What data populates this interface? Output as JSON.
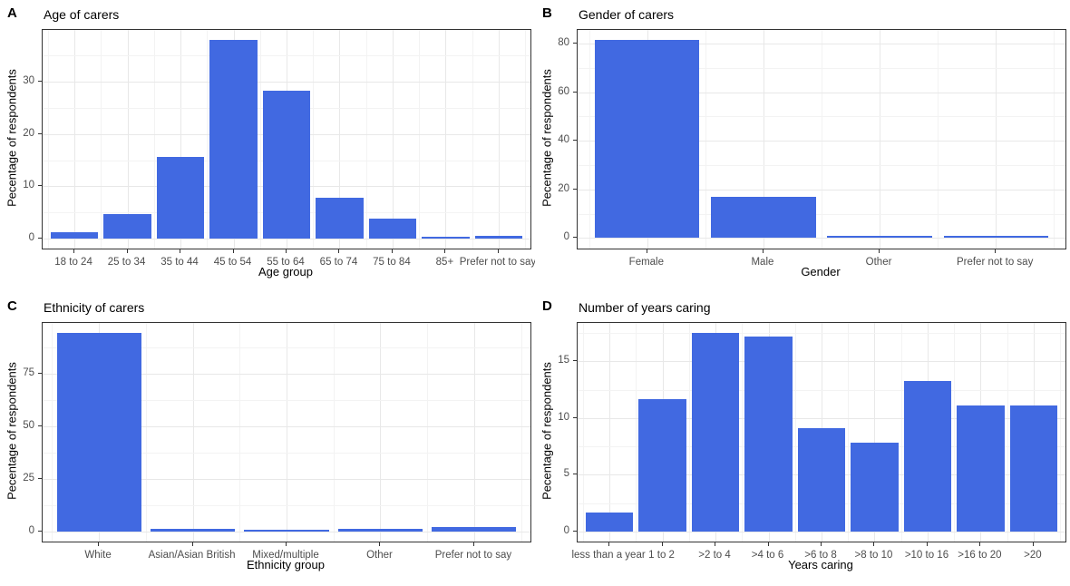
{
  "figure": {
    "background": "#ffffff",
    "bar_color": "#4169E1",
    "panel_border_color": "#333333",
    "grid_major_color": "#e8e8e8",
    "grid_minor_color": "#f3f3f3",
    "tick_label_color": "#4d4d4d",
    "text_color": "#000000"
  },
  "chart_data": [
    {
      "type": "bar",
      "tag": "A",
      "title": "Age of carers",
      "xlabel": "Age group",
      "ylabel": "Pecentage of respondents",
      "categories": [
        "18 to 24",
        "25 to 34",
        "35 to 44",
        "45 to 54",
        "55 to 64",
        "65 to 74",
        "75 to 84",
        "85+",
        "Prefer not to say"
      ],
      "values": [
        1.3,
        4.7,
        15.7,
        38.0,
        28.3,
        7.8,
        3.9,
        0.4,
        0.6
      ],
      "yticks": [
        0,
        10,
        20,
        30
      ],
      "ylim": [
        -1.9,
        39.9
      ],
      "grid": true,
      "legend": "none"
    },
    {
      "type": "bar",
      "tag": "B",
      "title": "Gender of carers",
      "xlabel": "Gender",
      "ylabel": "Pecentage of respondents",
      "categories": [
        "Female",
        "Male",
        "Other",
        "Prefer not to say"
      ],
      "values": [
        81.5,
        16.9,
        0.8,
        0.8
      ],
      "yticks": [
        0,
        20,
        40,
        60,
        80
      ],
      "ylim": [
        -4.3,
        85.6
      ],
      "grid": true,
      "legend": "none"
    },
    {
      "type": "bar",
      "tag": "C",
      "title": "Ethnicity of carers",
      "xlabel": "Ethnicity group",
      "ylabel": "Pecentage of respondents",
      "categories": [
        "White",
        "Asian/Asian British",
        "Mixed/multiple",
        "Other",
        "Prefer not to say"
      ],
      "values": [
        94.6,
        1.3,
        0.9,
        1.3,
        2.2
      ],
      "yticks": [
        0,
        25,
        50,
        75
      ],
      "ylim": [
        -4.7,
        99.3
      ],
      "grid": true,
      "legend": "none"
    },
    {
      "type": "bar",
      "tag": "D",
      "title": "Number of years caring",
      "xlabel": "Years caring",
      "ylabel": "Pecentage of respondents",
      "categories": [
        "less than a year",
        "1 to 2",
        ">2 to 4",
        ">4 to 6",
        ">6 to 8",
        ">8 to 10",
        ">10 to 16",
        ">16 to 20",
        ">20"
      ],
      "values": [
        1.7,
        11.7,
        17.5,
        17.2,
        9.1,
        7.8,
        13.3,
        11.1,
        11.1
      ],
      "yticks": [
        0,
        5,
        10,
        15
      ],
      "ylim": [
        -0.9,
        18.4
      ],
      "grid": true,
      "legend": "none"
    }
  ]
}
